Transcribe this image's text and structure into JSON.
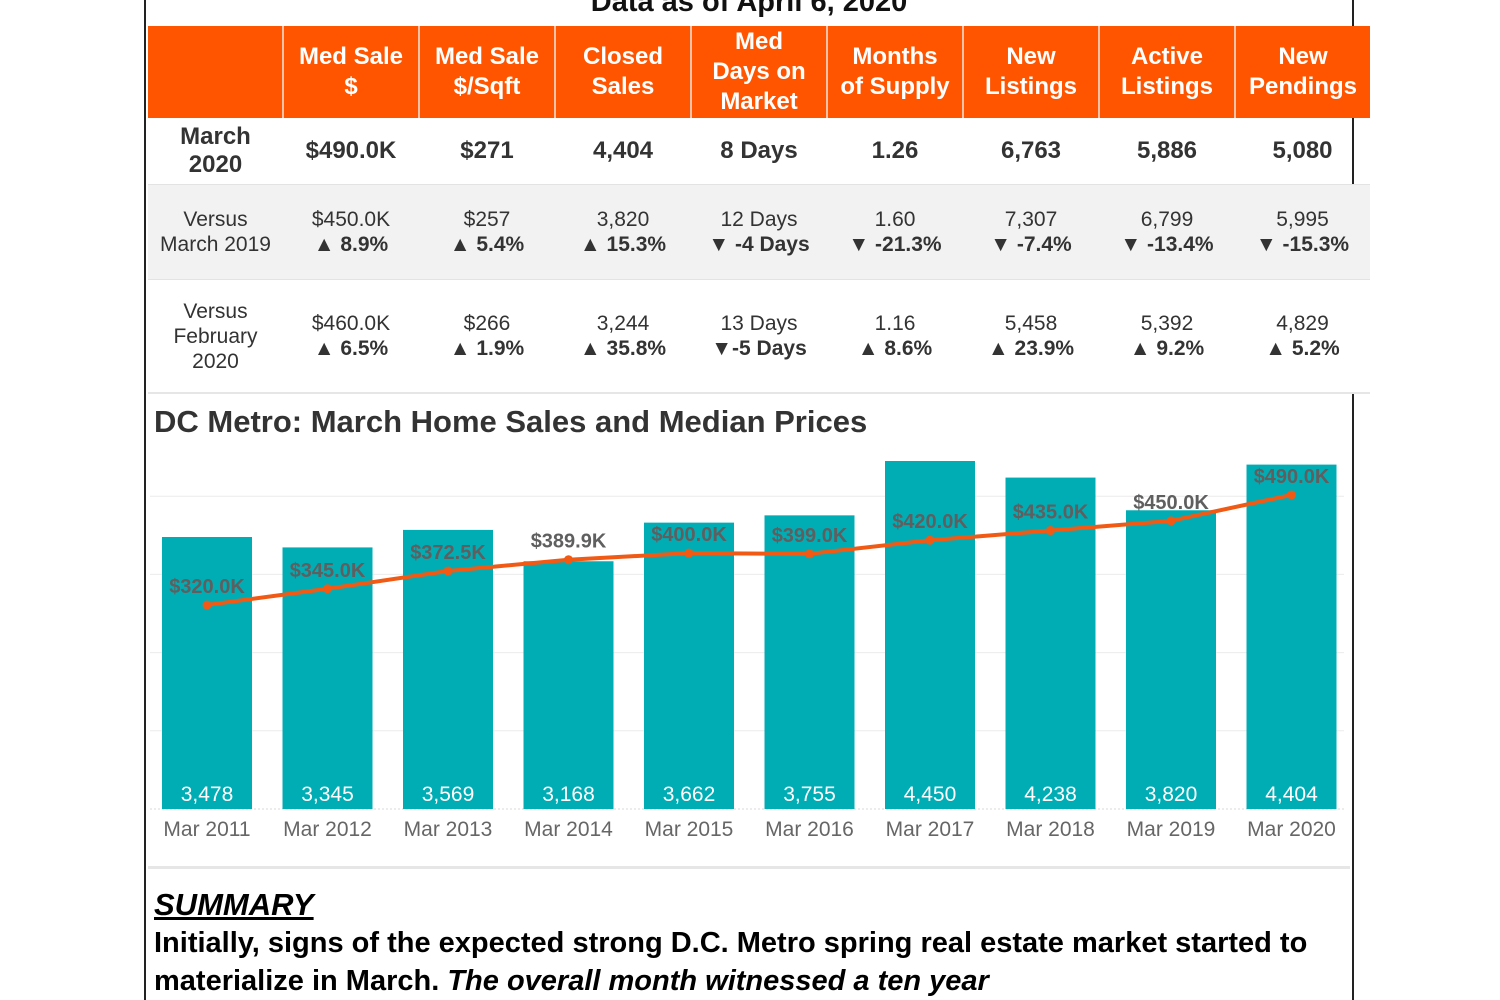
{
  "header": {
    "title": "Data as of April 6, 2020"
  },
  "kpi_table": {
    "columns": [
      "",
      "Med Sale $",
      "Med Sale $/Sqft",
      "Closed Sales",
      "Med Days on Market",
      "Months of Supply",
      "New Listings",
      "Active Listings",
      "New Pendings"
    ],
    "column_lines": [
      [
        ""
      ],
      [
        "Med Sale",
        "$"
      ],
      [
        "Med Sale",
        "$/Sqft"
      ],
      [
        "Closed",
        "Sales"
      ],
      [
        "Med",
        "Days on",
        "Market"
      ],
      [
        "Months",
        "of Supply"
      ],
      [
        "New",
        "Listings"
      ],
      [
        "Active",
        "Listings"
      ],
      [
        "New",
        "Pendings"
      ]
    ],
    "current": {
      "label_lines": [
        "March",
        "2020"
      ],
      "values": [
        "$490.0K",
        "$271",
        "4,404",
        "8 Days",
        "1.26",
        "6,763",
        "5,886",
        "5,080"
      ]
    },
    "comparisons": [
      {
        "label_lines": [
          "Versus",
          "March 2019"
        ],
        "cells": [
          {
            "value": "$450.0K",
            "change": "▲ 8.9%",
            "direction": "up"
          },
          {
            "value": "$257",
            "change": "▲ 5.4%",
            "direction": "up"
          },
          {
            "value": "3,820",
            "change": "▲ 15.3%",
            "direction": "up"
          },
          {
            "value": "12 Days",
            "change": "▼ -4 Days",
            "direction": "up"
          },
          {
            "value": "1.60",
            "change": "▼ -21.3%",
            "direction": "down"
          },
          {
            "value": "7,307",
            "change": "▼ -7.4%",
            "direction": "down"
          },
          {
            "value": "6,799",
            "change": "▼ -13.4%",
            "direction": "down"
          },
          {
            "value": "5,995",
            "change": "▼ -15.3%",
            "direction": "down"
          }
        ]
      },
      {
        "label_lines": [
          "Versus",
          "February",
          "2020"
        ],
        "cells": [
          {
            "value": "$460.0K",
            "change": "▲ 6.5%",
            "direction": "up"
          },
          {
            "value": "$266",
            "change": "▲ 1.9%",
            "direction": "up"
          },
          {
            "value": "3,244",
            "change": "▲ 35.8%",
            "direction": "up"
          },
          {
            "value": "13 Days",
            "change": "▼-5 Days",
            "direction": "up"
          },
          {
            "value": "1.16",
            "change": "▲ 8.6%",
            "direction": "up"
          },
          {
            "value": "5,458",
            "change": "▲ 23.9%",
            "direction": "up"
          },
          {
            "value": "5,392",
            "change": "▲ 9.2%",
            "direction": "up"
          },
          {
            "value": "4,829",
            "change": "▲ 5.2%",
            "direction": "up"
          }
        ]
      }
    ]
  },
  "colors": {
    "header_bg": "#ff5500",
    "bar": "#00adb5",
    "line": "#f05a14",
    "positive": "#1aa8ab",
    "negative": "#e0174f",
    "price_label": "#5f5f5f"
  },
  "chart_data": {
    "type": "bar",
    "title": "DC Metro: March Home Sales and Median Prices",
    "xlabel": "",
    "ylabel": "",
    "categories": [
      "Mar 2011",
      "Mar 2012",
      "Mar 2013",
      "Mar 2014",
      "Mar 2015",
      "Mar 2016",
      "Mar 2017",
      "Mar 2018",
      "Mar 2019",
      "Mar 2020"
    ],
    "series": [
      {
        "name": "Closed Sales",
        "type": "bar",
        "values": [
          3478,
          3345,
          3569,
          3168,
          3662,
          3755,
          4450,
          4238,
          3820,
          4404
        ],
        "labels": [
          "3,478",
          "3,345",
          "3,569",
          "3,168",
          "3,662",
          "3,755",
          "4,450",
          "4,238",
          "3,820",
          "4,404"
        ],
        "ylim": [
          0,
          4700
        ]
      },
      {
        "name": "Median Sale Price",
        "type": "line",
        "values": [
          320000,
          345000,
          372500,
          389900,
          400000,
          399000,
          420000,
          435000,
          450000,
          490000
        ],
        "labels": [
          "$320.0K",
          "$345.0K",
          "$372.5K",
          "$389.9K",
          "$400.0K",
          "$399.0K",
          "$420.0K",
          "$435.0K",
          "$450.0K",
          "$490.0K"
        ],
        "ylim": [
          0,
          570000
        ]
      }
    ],
    "gridlines": [
      1000,
      2000,
      3000,
      4000
    ],
    "grid": true,
    "legend": "none"
  },
  "summary": {
    "heading": "SUMMARY",
    "text_plain": "Initially, signs of the expected strong D.C. Metro spring real estate market started to materialize in March. ",
    "text_italic": "The overall month witnessed a ten year"
  }
}
